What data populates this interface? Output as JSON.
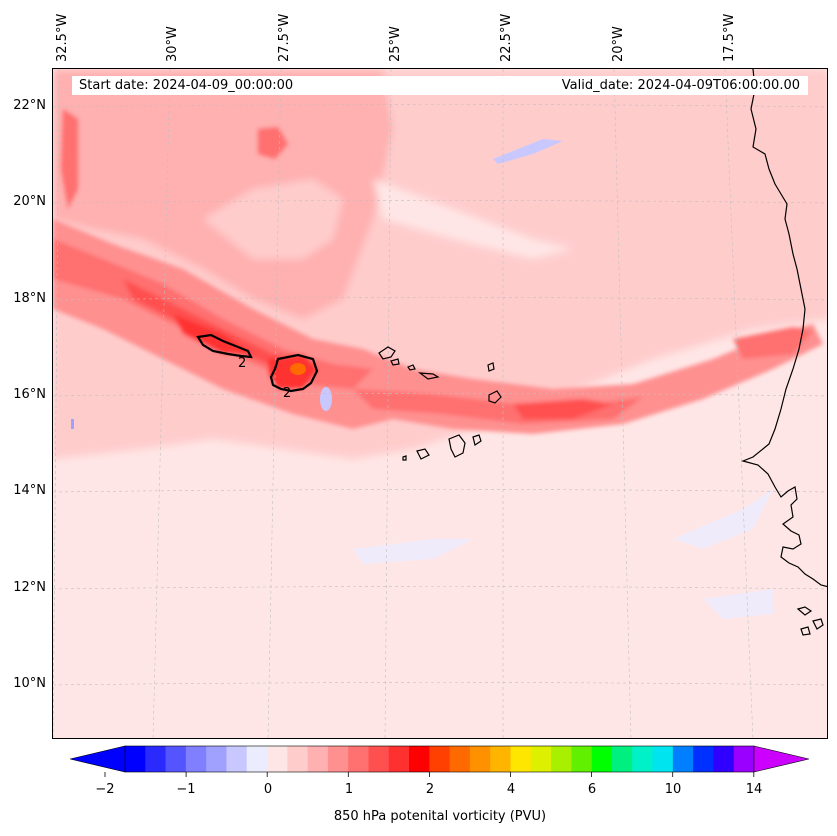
{
  "map": {
    "start_date": "Start date: 2024-04-09_00:00:00",
    "valid_date": "Valid_date: 2024-04-09T06:00:00.00",
    "lon_labels": [
      "32.5°W",
      "30°W",
      "27.5°W",
      "25°W",
      "22.5°W",
      "20°W",
      "17.5°W"
    ],
    "lat_labels": [
      "22°N",
      "20°N",
      "18°N",
      "16°N",
      "14°N",
      "12°N",
      "10°N"
    ],
    "contour_labels": [
      "2",
      "2"
    ],
    "colors": {
      "ocean_base": "#ffe6e6",
      "coastline": "#000000",
      "gridline": "#bfbfbf"
    }
  },
  "colorbar": {
    "label": "850 hPa potenital vorticity (PVU)",
    "ticks": [
      "−2",
      "−1",
      "0",
      "1",
      "2",
      "4",
      "6",
      "10",
      "14"
    ],
    "colors": [
      "#0000ff",
      "#2a2aff",
      "#5555ff",
      "#7f7fff",
      "#a0a0ff",
      "#c8c8ff",
      "#ececff",
      "#ffe6e6",
      "#ffcccc",
      "#ffb0b0",
      "#ff9090",
      "#ff7070",
      "#ff5050",
      "#ff3030",
      "#ff0000",
      "#ff4000",
      "#ff6a00",
      "#ff9000",
      "#ffb400",
      "#ffe600",
      "#dcf000",
      "#a8f000",
      "#60f000",
      "#00ff00",
      "#00f080",
      "#00f0c8",
      "#00e4f0",
      "#0080ff",
      "#0030ff",
      "#3000ff",
      "#9900ff"
    ],
    "extend_low_color": "#0000ff",
    "extend_high_color": "#cc00ff"
  }
}
